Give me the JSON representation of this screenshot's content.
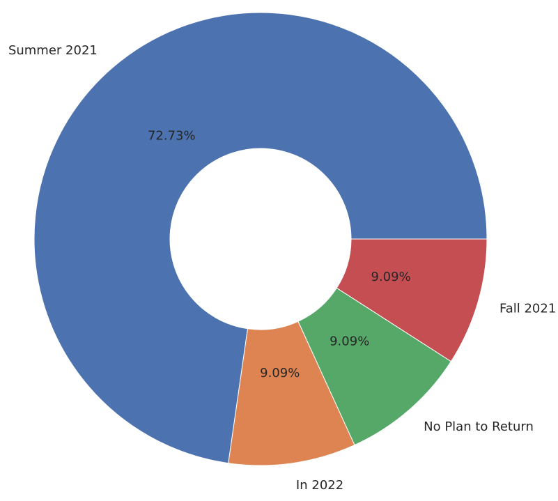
{
  "chart_data": {
    "type": "donut",
    "categories": [
      "Summer 2021",
      "In 2022",
      "No Plan to Return",
      "Fall 2021"
    ],
    "values": [
      72.73,
      9.09,
      9.09,
      9.09
    ],
    "value_labels": [
      "72.73%",
      "9.09%",
      "9.09%",
      "9.09%"
    ],
    "colors": [
      "#4c72b0",
      "#dd8452",
      "#55a868",
      "#c44e52"
    ]
  }
}
